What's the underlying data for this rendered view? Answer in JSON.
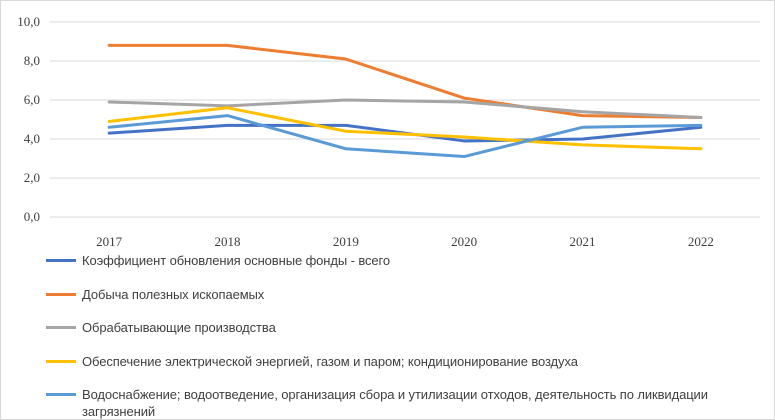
{
  "chart_data": {
    "type": "line",
    "title": "",
    "xlabel": "",
    "ylabel": "",
    "categories": [
      "2017",
      "2018",
      "2019",
      "2020",
      "2021",
      "2022"
    ],
    "ylim": [
      0,
      10
    ],
    "yticks": [
      "0,0",
      "2,0",
      "4,0",
      "6,0",
      "8,0",
      "10,0"
    ],
    "grid": true,
    "legend_position": "bottom",
    "series": [
      {
        "name": "Коэффициент обновления основные фонды - всего",
        "color": "#4472c4",
        "values": [
          4.3,
          4.7,
          4.7,
          3.9,
          4.0,
          4.6
        ]
      },
      {
        "name": "Добыча полезных ископаемых",
        "color": "#ed7d31",
        "values": [
          8.8,
          8.8,
          8.1,
          6.1,
          5.2,
          5.1
        ]
      },
      {
        "name": "Обрабатывающие производства",
        "color": "#a5a5a5",
        "values": [
          5.9,
          5.7,
          6.0,
          5.9,
          5.4,
          5.1
        ]
      },
      {
        "name": "Обеспечение электрической энергией, газом и паром; кондиционирование воздуха",
        "color": "#ffc000",
        "values": [
          4.9,
          5.6,
          4.4,
          4.1,
          3.7,
          3.5
        ]
      },
      {
        "name": "Водоснабжение; водоотведение, организация сбора и утилизации отходов, деятельность по ликвидации загрязнений",
        "color": "#5b9bd5",
        "values": [
          4.6,
          5.2,
          3.5,
          3.1,
          4.6,
          4.7
        ]
      }
    ]
  }
}
